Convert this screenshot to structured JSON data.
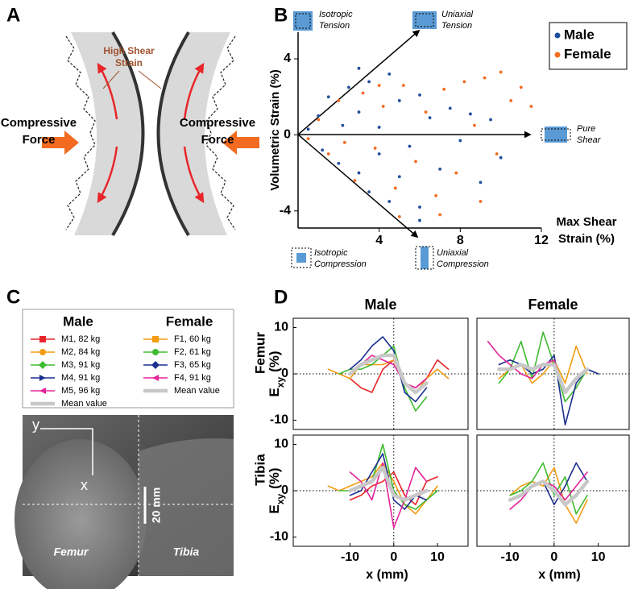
{
  "panel_labels": [
    "A",
    "B",
    "C",
    "D"
  ],
  "panel_a": {
    "shear_label": [
      "High Shear",
      "Strain"
    ],
    "left_force": [
      "Compressive",
      "Force"
    ],
    "right_force": [
      "Compressive",
      "Force"
    ]
  },
  "panel_c": {
    "axis_y": "y",
    "axis_x": "x",
    "scale_bar": "20 mm",
    "femur": "Femur",
    "tibia": "Tibia"
  },
  "chart_data": [
    {
      "type": "scatter",
      "ylabel": "Volumetric Strain (%)",
      "xlabel": [
        "Max Shear",
        "Strain (%)"
      ],
      "xlim": [
        0,
        12
      ],
      "xticks": [
        4,
        8,
        12
      ],
      "ylim": [
        -4.9,
        5.4
      ],
      "yticks": [
        -4,
        0,
        4
      ],
      "legend": "upper right",
      "annotations": [
        [
          "Isotropic",
          "Tension"
        ],
        [
          "Uniaxial",
          "Tension"
        ],
        [
          "Pure",
          "Shear"
        ],
        [
          "Isotropic",
          "Compression"
        ],
        [
          "Uniaxial",
          "Compression"
        ]
      ],
      "series": [
        {
          "name": "Male",
          "color": "#1f4e9c",
          "x": [
            0.5,
            1,
            1.2,
            1.5,
            2,
            2.2,
            2.5,
            3,
            3,
            3.5,
            3.5,
            4,
            4,
            4.5,
            4.5,
            5,
            5,
            5.5,
            6,
            6,
            6.5,
            7,
            7.5,
            8,
            8.5,
            9,
            9.5,
            10,
            6,
            3
          ],
          "values": [
            0.3,
            1,
            -0.8,
            2,
            -1.5,
            0.5,
            2.5,
            -2,
            1.2,
            -3,
            2.8,
            0.4,
            -1,
            3.2,
            -3.5,
            1.8,
            -2.2,
            -0.6,
            2.1,
            -3.8,
            0.9,
            -1.8,
            1.4,
            -0.3,
            1.1,
            -2.5,
            0.8,
            -1.2,
            -4.5,
            3.5
          ]
        },
        {
          "name": "Female",
          "color": "#f26b21",
          "x": [
            0.5,
            1,
            1.5,
            2,
            2.3,
            2.8,
            3.2,
            3.8,
            4.2,
            4.8,
            5.2,
            5.8,
            6.3,
            6.8,
            7.2,
            7.8,
            8.2,
            8.7,
            9.2,
            9.8,
            10.5,
            11,
            11.5,
            7,
            5,
            4,
            9,
            10
          ],
          "values": [
            -0.2,
            0.8,
            -1,
            1.8,
            -0.4,
            -2.4,
            2.2,
            -0.7,
            1.5,
            -2.8,
            2.6,
            -1.4,
            1.2,
            -3.2,
            2.4,
            -2,
            2.8,
            0.5,
            3,
            -1,
            1.8,
            2.5,
            1.5,
            -4.2,
            -4.3,
            2.6,
            -3.5,
            3.3
          ]
        }
      ]
    },
    {
      "type": "line",
      "title": "Male",
      "row_label": "Femur",
      "ylabel": {
        "main": "E",
        "sub": "xy",
        "unit": "(%)"
      },
      "xlim": [
        -23,
        17
      ],
      "ylim": [
        -12,
        12
      ],
      "yticks": [
        -10,
        0,
        10
      ],
      "x": [
        -15,
        -12.5,
        -10,
        -7.5,
        -5,
        -2.5,
        0,
        2.5,
        5,
        7.5,
        10,
        12.5
      ],
      "series": [
        {
          "name": "M1, 82 kg",
          "color": "#e8262a",
          "marker": "square",
          "line_width": 1.6,
          "values": [
            null,
            null,
            -1,
            -3,
            -4,
            1,
            3,
            -2,
            -3,
            -1,
            3,
            1
          ]
        },
        {
          "name": "M2, 84 kg",
          "color": "#f39c12",
          "marker": "circle",
          "line_width": 1.6,
          "values": [
            1,
            0,
            -1,
            2,
            2,
            2,
            3,
            -2,
            -4,
            -1,
            1,
            -1
          ]
        },
        {
          "name": "M3, 91 kg",
          "color": "#3dbb2e",
          "marker": "diamond",
          "line_width": 1.6,
          "values": [
            null,
            0,
            1,
            1,
            2,
            4,
            6,
            -3,
            -8,
            -5,
            null,
            null
          ]
        },
        {
          "name": "M4, 91 kg",
          "color": "#1c2f8f",
          "marker": "triangle-right",
          "line_width": 1.6,
          "values": [
            null,
            null,
            1,
            3,
            6,
            8,
            5,
            -4,
            -6,
            -3,
            null,
            null
          ]
        },
        {
          "name": "M5, 96 kg",
          "color": "#e5239a",
          "marker": "triangle-left",
          "line_width": 1.6,
          "values": [
            null,
            null,
            0,
            2,
            4,
            3,
            2,
            -2,
            -3,
            -1,
            null,
            null
          ]
        },
        {
          "name": "Mean value",
          "color": "#c8c8c8",
          "marker": "none",
          "line_width": 4.5,
          "values": [
            null,
            null,
            0,
            2,
            3,
            4,
            4,
            -2,
            -4,
            -2,
            null,
            null
          ]
        }
      ]
    },
    {
      "type": "line",
      "title": "Female",
      "xlim": [
        -17.5,
        17
      ],
      "ylim": [
        -12,
        12
      ],
      "x": [
        -15,
        -12.5,
        -10,
        -7.5,
        -5,
        -2.5,
        0,
        2.5,
        5,
        7.5,
        10,
        12.5
      ],
      "series": [
        {
          "name": "F1, 60 kg",
          "color": "#f39c12",
          "marker": "square",
          "line_width": 1.6,
          "values": [
            null,
            -1,
            1,
            2,
            -2,
            0,
            3,
            -2,
            6,
            0,
            null,
            null
          ]
        },
        {
          "name": "F2, 61 kg",
          "color": "#3dbb2e",
          "marker": "circle",
          "line_width": 1.6,
          "values": [
            null,
            -2,
            1,
            7,
            -1,
            9,
            2,
            -6,
            -3,
            1,
            0,
            null
          ]
        },
        {
          "name": "F3, 65 kg",
          "color": "#1c2f8f",
          "marker": "diamond",
          "line_width": 1.6,
          "values": [
            null,
            2,
            3,
            2,
            0,
            1,
            4,
            -11,
            -2,
            1,
            0,
            null
          ]
        },
        {
          "name": "F4, 91 kg",
          "color": "#e5239a",
          "marker": "triangle-left",
          "line_width": 1.6,
          "values": [
            7,
            4,
            2,
            0,
            -1,
            2,
            3,
            -4,
            -1,
            1,
            null,
            null
          ]
        },
        {
          "name": "Mean value",
          "color": "#c8c8c8",
          "marker": "none",
          "line_width": 4.5,
          "values": [
            null,
            1,
            1,
            2,
            1,
            2,
            2,
            -4,
            -1,
            1,
            null,
            null
          ]
        }
      ]
    },
    {
      "type": "line",
      "row_label": "Tibia",
      "ylabel": {
        "main": "E",
        "sub": "xy",
        "unit": "(%)"
      },
      "xlabel": "x (mm)",
      "xlim": [
        -23,
        17
      ],
      "ylim": [
        -12,
        12
      ],
      "yticks": [
        -10,
        0,
        10
      ],
      "xticks": [
        -10,
        0,
        10
      ],
      "x": [
        -15,
        -12.5,
        -10,
        -7.5,
        -5,
        -2.5,
        0,
        2.5,
        5,
        7.5,
        10,
        12.5
      ],
      "series": [
        {
          "name": "M1, 82 kg",
          "color": "#e8262a",
          "marker": "square",
          "line_width": 1.6,
          "values": [
            null,
            null,
            -2,
            -1,
            1,
            2,
            4,
            -1,
            -3,
            2,
            3,
            null
          ]
        },
        {
          "name": "M2, 84 kg",
          "color": "#f39c12",
          "marker": "circle",
          "line_width": 1.6,
          "values": [
            1,
            0,
            1,
            2,
            3,
            6,
            2,
            -3,
            -5,
            -2,
            1,
            null
          ]
        },
        {
          "name": "M3, 91 kg",
          "color": "#3dbb2e",
          "marker": "diamond",
          "line_width": 1.6,
          "values": [
            null,
            0,
            0,
            1,
            2,
            10,
            0,
            -3,
            -4,
            -2,
            0,
            null
          ]
        },
        {
          "name": "M4, 91 kg",
          "color": "#1c2f8f",
          "marker": "triangle-right",
          "line_width": 1.6,
          "values": [
            null,
            null,
            -1,
            0,
            4,
            8,
            -2,
            -4,
            -1,
            -2,
            null,
            null
          ]
        },
        {
          "name": "M5, 96 kg",
          "color": "#e5239a",
          "marker": "triangle-left",
          "line_width": 1.6,
          "values": [
            null,
            null,
            4,
            2,
            -2,
            6,
            -8,
            -2,
            5,
            2,
            null,
            null
          ]
        },
        {
          "name": "Mean value",
          "color": "#c8c8c8",
          "marker": "none",
          "line_width": 4.5,
          "values": [
            null,
            null,
            0,
            1,
            2,
            5,
            -1,
            -2,
            -1,
            0,
            null,
            null
          ]
        }
      ]
    },
    {
      "type": "line",
      "xlabel": "x (mm)",
      "xlim": [
        -17.5,
        17
      ],
      "ylim": [
        -12,
        12
      ],
      "xticks": [
        -10,
        0,
        10
      ],
      "x": [
        -15,
        -12.5,
        -10,
        -7.5,
        -5,
        -2.5,
        0,
        2.5,
        5,
        7.5,
        10,
        12.5
      ],
      "series": [
        {
          "name": "F1, 60 kg",
          "color": "#f39c12",
          "marker": "square",
          "line_width": 1.6,
          "values": [
            null,
            null,
            -1,
            1,
            2,
            1,
            5,
            -3,
            -7,
            -2,
            null,
            null
          ]
        },
        {
          "name": "F2, 61 kg",
          "color": "#3dbb2e",
          "marker": "circle",
          "line_width": 1.6,
          "values": [
            null,
            null,
            -1,
            0,
            2,
            6,
            -1,
            3,
            -5,
            -1,
            null,
            null
          ]
        },
        {
          "name": "F3, 65 kg",
          "color": "#1c2f8f",
          "marker": "diamond",
          "line_width": 1.6,
          "values": [
            null,
            null,
            -2,
            -1,
            1,
            2,
            -3,
            1,
            6,
            2,
            null,
            null
          ]
        },
        {
          "name": "F4, 91 kg",
          "color": "#e5239a",
          "marker": "triangle-left",
          "line_width": 1.6,
          "values": [
            null,
            null,
            -4,
            -2,
            1,
            2,
            1,
            -2,
            1,
            4,
            null,
            null
          ]
        },
        {
          "name": "Mean value",
          "color": "#c8c8c8",
          "marker": "none",
          "line_width": 4.5,
          "values": [
            null,
            null,
            -2,
            -1,
            1,
            2,
            0,
            -3,
            -1,
            2,
            null,
            null
          ]
        }
      ]
    }
  ]
}
